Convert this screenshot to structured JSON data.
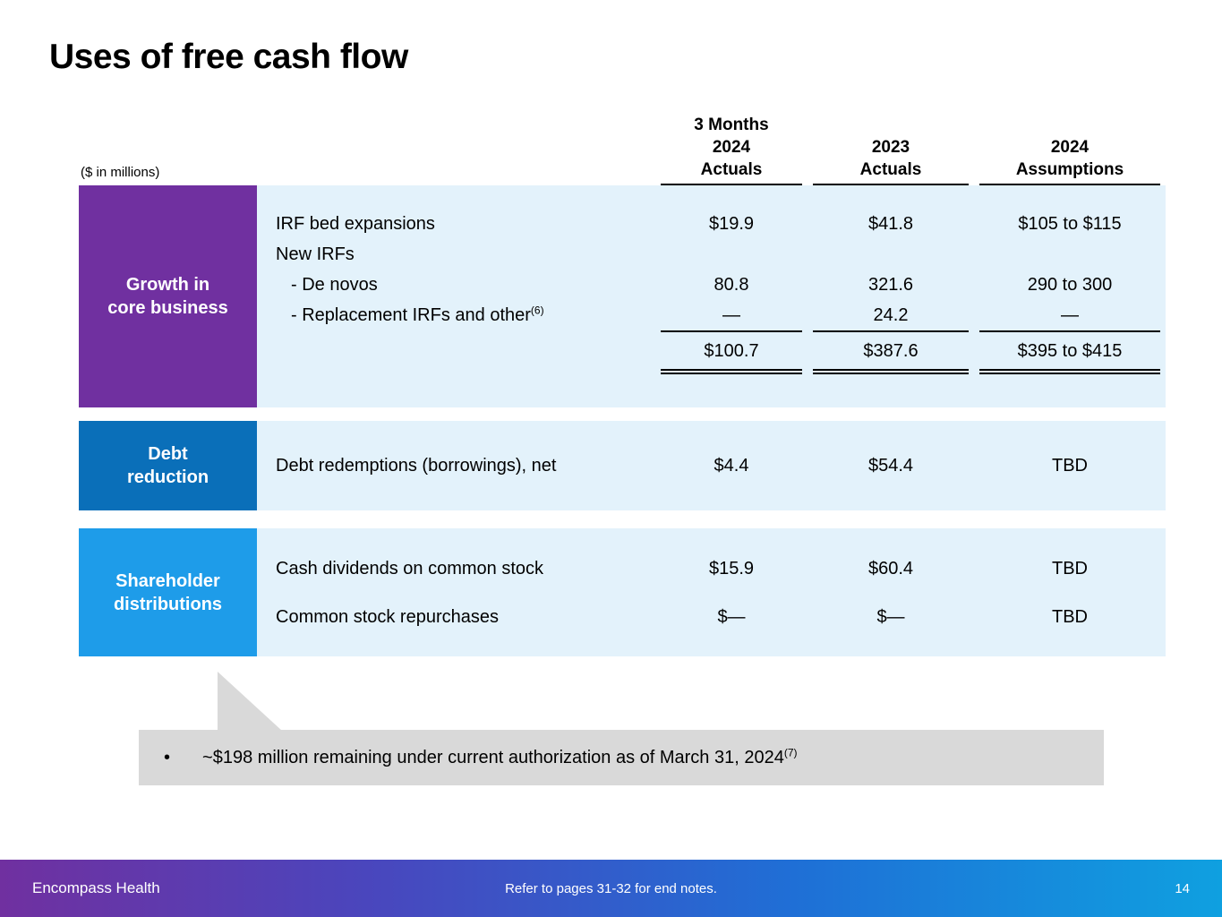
{
  "title": "Uses of free cash flow",
  "units_note": "($ in millions)",
  "columns": {
    "col1": "3 Months\n2024\nActuals",
    "col2": "2023\nActuals",
    "col3": "2024\nAssumptions"
  },
  "growth": {
    "header": "Growth in\ncore business",
    "rows": {
      "irf_bed": {
        "label": "IRF bed expansions",
        "v1": "$19.9",
        "v2": "$41.8",
        "v3": "$105 to $115"
      },
      "new_irfs": {
        "label": "New IRFs",
        "v1": "",
        "v2": "",
        "v3": ""
      },
      "de_novos": {
        "label": "- De novos",
        "v1": "80.8",
        "v2": "321.6",
        "v3": "290 to 300"
      },
      "replacement": {
        "label": "- Replacement IRFs and other",
        "sup": "(6)",
        "v1": "—",
        "v2": "24.2",
        "v3": "—"
      },
      "total": {
        "label": "",
        "v1": "$100.7",
        "v2": "$387.6",
        "v3": "$395 to $415"
      }
    }
  },
  "debt": {
    "header": "Debt\nreduction",
    "rows": {
      "redemptions": {
        "label": "Debt redemptions (borrowings), net",
        "v1": "$4.4",
        "v2": "$54.4",
        "v3": "TBD"
      }
    }
  },
  "shareholder": {
    "header": "Shareholder\ndistributions",
    "rows": {
      "dividends": {
        "label": "Cash dividends on common stock",
        "v1": "$15.9",
        "v2": "$60.4",
        "v3": "TBD"
      },
      "repurchases": {
        "label": "Common stock repurchases",
        "v1": "$—",
        "v2": "$—",
        "v3": "TBD"
      }
    }
  },
  "callout": {
    "bullet": "•",
    "text": "~$198 million remaining under current authorization as of March 31, 2024",
    "sup": "(7)"
  },
  "footer": {
    "brand": "Encompass Health",
    "note": "Refer to pages 31-32 for end notes.",
    "page": "14"
  },
  "colors": {
    "purple": "#7030a0",
    "debt_blue": "#0a6fb9",
    "shareholder_blue": "#1e9ce9",
    "row_bg": "#e3f2fb",
    "callout_gray": "#d9d9d9"
  }
}
